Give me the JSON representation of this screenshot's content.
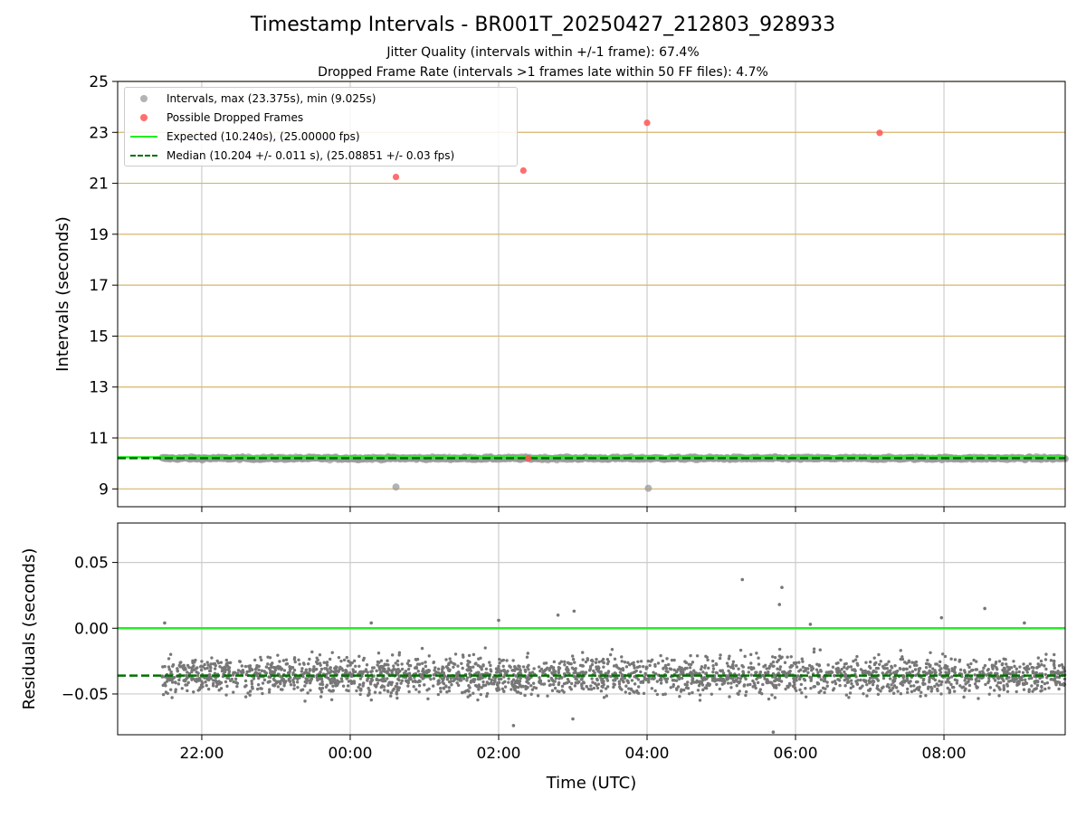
{
  "figure": {
    "title": "Timestamp Intervals - BR001T_20250427_212803_928933",
    "subtitle_1": "Jitter Quality (intervals within +/-1 frame): 67.4%",
    "subtitle_2": "Dropped Frame Rate (intervals >1 frames late within 50 FF files): 4.7%"
  },
  "chart_data": [
    {
      "type": "scatter",
      "xlabel": "",
      "ylabel": "Intervals (seconds)",
      "xlim": [
        "2025-04-27T20:52:00Z",
        "2025-04-28T09:38:00Z"
      ],
      "ylim": [
        8.3,
        25
      ],
      "yticks": [
        9,
        11,
        13,
        15,
        17,
        19,
        21,
        23,
        25
      ],
      "grid": true,
      "grid_color_y": "#d6b56b",
      "legend_position": "top-left",
      "series": [
        {
          "name": "Intervals, max (23.375s), min (9.025s)",
          "color": "#999999",
          "band": {
            "x_start": "2025-04-27T21:28:00Z",
            "x_end": "2025-04-28T09:38:00Z",
            "y_center": 10.2,
            "spread": 0.05
          },
          "outliers": [
            {
              "x": "2025-04-28T00:37:00Z",
              "y": 9.075
            },
            {
              "x": "2025-04-28T04:01:00Z",
              "y": 9.025
            }
          ]
        },
        {
          "name": "Possible Dropped Frames",
          "color": "#ff5555",
          "points": [
            {
              "x": "2025-04-28T00:37:00Z",
              "y": 21.25
            },
            {
              "x": "2025-04-28T02:20:00Z",
              "y": 21.5
            },
            {
              "x": "2025-04-28T02:24:00Z",
              "y": 10.2
            },
            {
              "x": "2025-04-28T04:00:00Z",
              "y": 23.375
            },
            {
              "x": "2025-04-28T07:08:00Z",
              "y": 22.98
            }
          ]
        },
        {
          "name": "Expected (10.240s), (25.00000 fps)",
          "color": "#22ee22",
          "style": "solid",
          "y": 10.24
        },
        {
          "name": "Median (10.204 +/- 0.011 s), (25.08851 +/- 0.03 fps)",
          "color": "#007000",
          "style": "dashed",
          "y": 10.204
        }
      ]
    },
    {
      "type": "scatter",
      "xlabel": "Time (UTC)",
      "ylabel": "Residuals (seconds)",
      "xlim": [
        "2025-04-27T20:52:00Z",
        "2025-04-28T09:38:00Z"
      ],
      "ylim": [
        -0.081,
        0.08
      ],
      "yticks": [
        0.05,
        0.0,
        -0.05
      ],
      "ytick_labels": [
        "0.05",
        "0.00",
        "−0.05"
      ],
      "xticks": [
        "2025-04-27T22:00:00Z",
        "2025-04-28T00:00:00Z",
        "2025-04-28T02:00:00Z",
        "2025-04-28T04:00:00Z",
        "2025-04-28T06:00:00Z",
        "2025-04-28T08:00:00Z"
      ],
      "xtick_labels": [
        "22:00",
        "00:00",
        "02:00",
        "04:00",
        "06:00",
        "08:00"
      ],
      "grid": true,
      "series": [
        {
          "name": "",
          "color": "#777777",
          "band": {
            "x_start": "2025-04-27T21:28:00Z",
            "x_end": "2025-04-28T09:38:00Z",
            "y_center": -0.036,
            "spread": 0.014
          },
          "outliers": [
            {
              "x": "2025-04-28T05:17:00Z",
              "y": 0.037
            },
            {
              "x": "2025-04-28T05:49:00Z",
              "y": 0.031
            },
            {
              "x": "2025-04-28T05:47:00Z",
              "y": 0.018
            },
            {
              "x": "2025-04-28T08:33:00Z",
              "y": 0.015
            },
            {
              "x": "2025-04-28T07:58:00Z",
              "y": 0.008
            },
            {
              "x": "2025-04-27T21:30:00Z",
              "y": 0.004
            },
            {
              "x": "2025-04-28T02:00:00Z",
              "y": 0.006
            },
            {
              "x": "2025-04-28T06:12:00Z",
              "y": 0.003
            },
            {
              "x": "2025-04-28T00:17:00Z",
              "y": 0.004
            },
            {
              "x": "2025-04-28T02:48:00Z",
              "y": 0.01
            },
            {
              "x": "2025-04-28T03:01:00Z",
              "y": 0.013
            },
            {
              "x": "2025-04-28T09:05:00Z",
              "y": 0.004
            },
            {
              "x": "2025-04-28T05:42:00Z",
              "y": -0.079
            },
            {
              "x": "2025-04-28T03:00:00Z",
              "y": -0.069
            },
            {
              "x": "2025-04-28T02:12:00Z",
              "y": -0.074
            }
          ]
        },
        {
          "name": "",
          "color": "#22ee22",
          "style": "solid",
          "y": 0.0
        },
        {
          "name": "",
          "color": "#007000",
          "style": "dashed",
          "y": -0.036
        }
      ]
    }
  ]
}
